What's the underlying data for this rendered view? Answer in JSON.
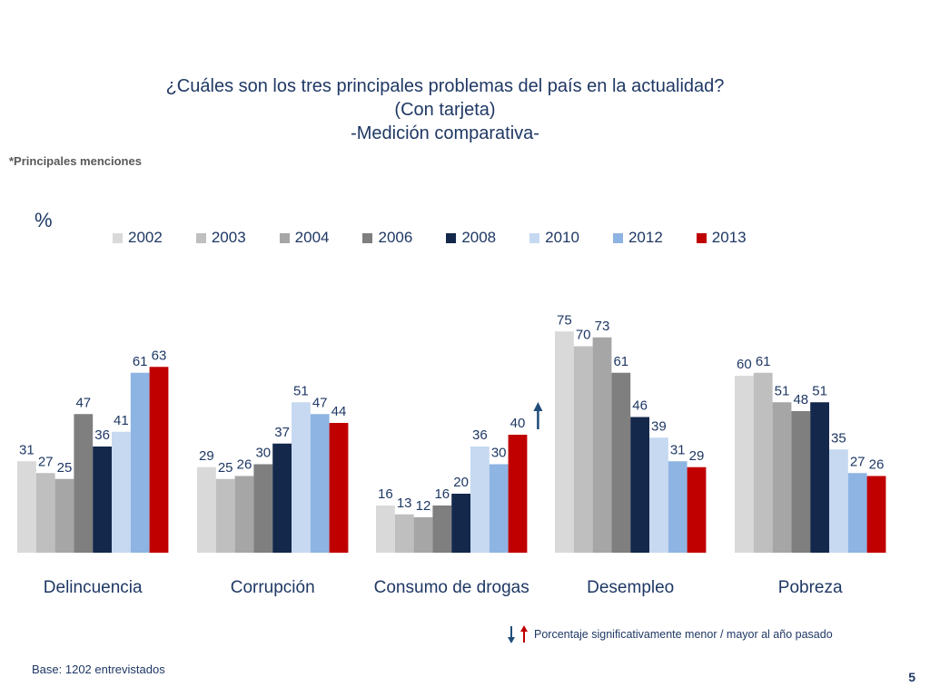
{
  "title": {
    "line1": "¿Cuáles son los tres principales problemas del país en la actualidad?",
    "line2": "(Con tarjeta)",
    "line3": "-Medición comparativa-"
  },
  "note_mentions": "*Principales menciones",
  "unit_label": "%",
  "footer": {
    "base": "Base: 1202 entrevistados",
    "significance_note": "Porcentaje significativamente menor / mayor al año pasado",
    "page_number": "5"
  },
  "colors": {
    "text": "#1f3864",
    "arrow_down": "#1f4e79",
    "arrow_up": "#c00000"
  },
  "chart_data": {
    "type": "bar",
    "title": "¿Cuáles son los tres principales problemas del país en la actualidad?",
    "ylabel": "%",
    "ylim": [
      0,
      80
    ],
    "categories": [
      "Delincuencia",
      "Corrupción",
      "Consumo de drogas",
      "Desempleo",
      "Pobreza"
    ],
    "legend_position": "top",
    "series": [
      {
        "name": "2002",
        "color": "#d9d9d9",
        "values": [
          31,
          29,
          16,
          75,
          60
        ]
      },
      {
        "name": "2003",
        "color": "#bfbfbf",
        "values": [
          27,
          25,
          13,
          70,
          61
        ]
      },
      {
        "name": "2004",
        "color": "#a6a6a6",
        "values": [
          25,
          26,
          12,
          73,
          51
        ]
      },
      {
        "name": "2006",
        "color": "#7f7f7f",
        "values": [
          47,
          30,
          16,
          61,
          48
        ]
      },
      {
        "name": "2008",
        "color": "#14284b",
        "values": [
          36,
          37,
          20,
          46,
          51
        ]
      },
      {
        "name": "2010",
        "color": "#c6d9f1",
        "values": [
          41,
          51,
          36,
          39,
          35
        ]
      },
      {
        "name": "2012",
        "color": "#8eb4e3",
        "values": [
          61,
          47,
          30,
          31,
          27
        ]
      },
      {
        "name": "2013",
        "color": "#c00000",
        "values": [
          63,
          44,
          40,
          29,
          26
        ]
      }
    ],
    "annotations": [
      {
        "category": "Consumo de drogas",
        "series": "2013",
        "direction": "up",
        "meaning": "significativamente mayor al año pasado"
      }
    ]
  }
}
